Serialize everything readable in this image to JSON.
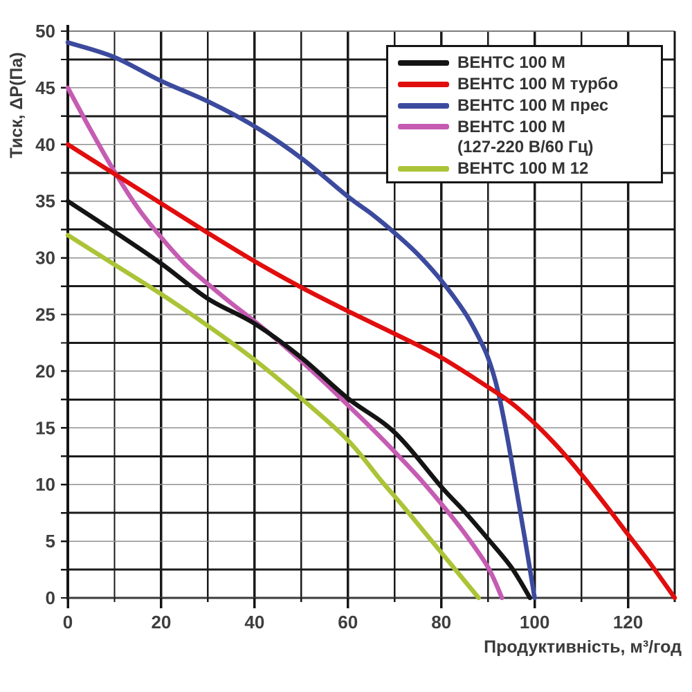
{
  "chart_data": {
    "type": "line",
    "title": "",
    "xlabel": "Продуктивність, м³/год",
    "ylabel": "Тиск, ΔР(Па)",
    "xlim": [
      0,
      130
    ],
    "ylim": [
      0,
      50
    ],
    "x_ticks": [
      0,
      20,
      40,
      60,
      80,
      100,
      120
    ],
    "x_minor_step": 10,
    "y_ticks": [
      0,
      5,
      10,
      15,
      20,
      25,
      30,
      35,
      40,
      45,
      50
    ],
    "y_minor_step": 2.5,
    "grid": "both",
    "grid_minor_color": "#1a1a1a",
    "grid_major_color": "#8f8f8f",
    "axis_color": "#141414",
    "legend_position": "top-right",
    "series": [
      {
        "id": "vents-100-m",
        "name": "ВЕНТС 100 М",
        "name_line2": "",
        "color": "#141414",
        "points": [
          [
            0,
            35
          ],
          [
            10,
            32.3
          ],
          [
            20,
            29.5
          ],
          [
            30,
            26.4
          ],
          [
            40,
            24.2
          ],
          [
            50,
            21.2
          ],
          [
            60,
            17.6
          ],
          [
            70,
            14.6
          ],
          [
            80,
            9.8
          ],
          [
            85,
            7.6
          ],
          [
            90,
            5.2
          ],
          [
            95,
            2.7
          ],
          [
            99,
            0
          ]
        ]
      },
      {
        "id": "vents-100-m-turbo",
        "name": "ВЕНТС 100 М турбо",
        "name_line2": "",
        "color": "#e10e0e",
        "points": [
          [
            0,
            40
          ],
          [
            10,
            37.4
          ],
          [
            20,
            34.8
          ],
          [
            30,
            32.2
          ],
          [
            40,
            29.7
          ],
          [
            50,
            27.4
          ],
          [
            60,
            25.3
          ],
          [
            70,
            23.3
          ],
          [
            80,
            21.2
          ],
          [
            90,
            18.6
          ],
          [
            95,
            17.2
          ],
          [
            100,
            15.4
          ],
          [
            105,
            13.3
          ],
          [
            110,
            10.9
          ],
          [
            115,
            8.3
          ],
          [
            120,
            5.6
          ],
          [
            125,
            2.9
          ],
          [
            130,
            0
          ]
        ]
      },
      {
        "id": "vents-100-m-pres",
        "name": "ВЕНТС 100 М прес",
        "name_line2": "",
        "color": "#3c4a9e",
        "points": [
          [
            0,
            49
          ],
          [
            10,
            47.7
          ],
          [
            20,
            45.6
          ],
          [
            30,
            43.8
          ],
          [
            40,
            41.6
          ],
          [
            50,
            38.8
          ],
          [
            60,
            35.4
          ],
          [
            65,
            33.9
          ],
          [
            70,
            32.2
          ],
          [
            75,
            30.3
          ],
          [
            80,
            28
          ],
          [
            85,
            25.2
          ],
          [
            88,
            23
          ],
          [
            90,
            21.2
          ],
          [
            92,
            18.5
          ],
          [
            94,
            14.5
          ],
          [
            96,
            9.8
          ],
          [
            98,
            5
          ],
          [
            100,
            0
          ]
        ]
      },
      {
        "id": "vents-100-m-127-220",
        "name": "ВЕНТС 100 М",
        "name_line2": "(127-220 В/60 Гц)",
        "color": "#c55cb2",
        "points": [
          [
            0,
            45
          ],
          [
            5,
            41.2
          ],
          [
            10,
            37.6
          ],
          [
            15,
            34.4
          ],
          [
            20,
            31.8
          ],
          [
            25,
            29.5
          ],
          [
            30,
            27.7
          ],
          [
            35,
            26
          ],
          [
            40,
            24.4
          ],
          [
            45,
            22.7
          ],
          [
            50,
            20.9
          ],
          [
            55,
            19
          ],
          [
            60,
            17
          ],
          [
            65,
            15
          ],
          [
            70,
            12.9
          ],
          [
            75,
            10.7
          ],
          [
            80,
            8.3
          ],
          [
            85,
            5.7
          ],
          [
            90,
            2.7
          ],
          [
            93,
            0
          ]
        ]
      },
      {
        "id": "vents-100-m-12",
        "name": "ВЕНТС 100 М 12",
        "name_line2": "",
        "color": "#abc437",
        "points": [
          [
            0,
            32
          ],
          [
            10,
            29.4
          ],
          [
            20,
            26.8
          ],
          [
            30,
            24
          ],
          [
            40,
            21
          ],
          [
            50,
            17.6
          ],
          [
            60,
            13.9
          ],
          [
            67,
            10.4
          ],
          [
            72,
            8
          ],
          [
            78,
            5
          ],
          [
            83,
            2.5
          ],
          [
            88,
            0
          ]
        ]
      }
    ],
    "legend_order": [
      "vents-100-m",
      "vents-100-m-turbo",
      "vents-100-m-pres",
      "vents-100-m-127-220",
      "vents-100-m-12"
    ],
    "draw_order": [
      "vents-100-m-12",
      "vents-100-m-127-220",
      "vents-100-m",
      "vents-100-m-pres",
      "vents-100-m-turbo"
    ]
  }
}
